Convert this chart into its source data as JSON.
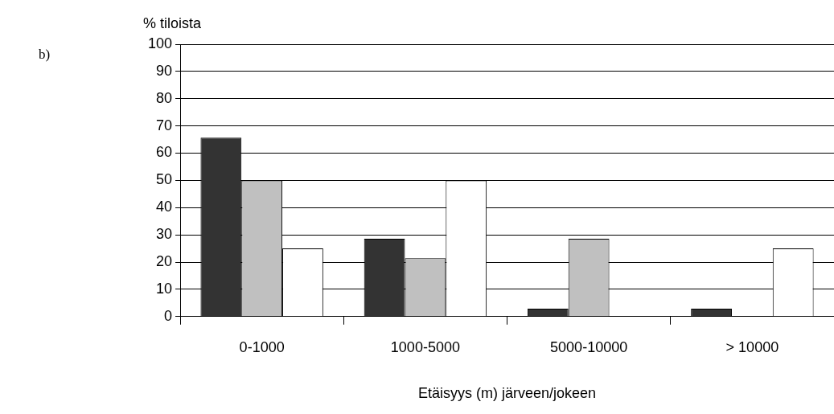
{
  "chart_data": {
    "type": "bar",
    "ylabel": "% tiloista",
    "xlabel": "Etäisyys (m) järveen/jokeen",
    "annotations": [
      "b)"
    ],
    "categories": [
      "0-1000",
      "1000-5000",
      "5000-10000",
      "> 10000"
    ],
    "series": [
      {
        "color": "#333333",
        "values": [
          65.7,
          28.6,
          2.9,
          2.9
        ]
      },
      {
        "color": "#c0c0c0",
        "values": [
          50,
          21.4,
          28.6,
          0
        ]
      },
      {
        "color": "#ffffff",
        "values": [
          25,
          50,
          0,
          25
        ]
      }
    ],
    "ylim": [
      0,
      100
    ],
    "yticks": [
      0,
      10,
      20,
      30,
      40,
      50,
      60,
      70,
      80,
      90,
      100
    ],
    "grid": "y",
    "legend": false
  }
}
